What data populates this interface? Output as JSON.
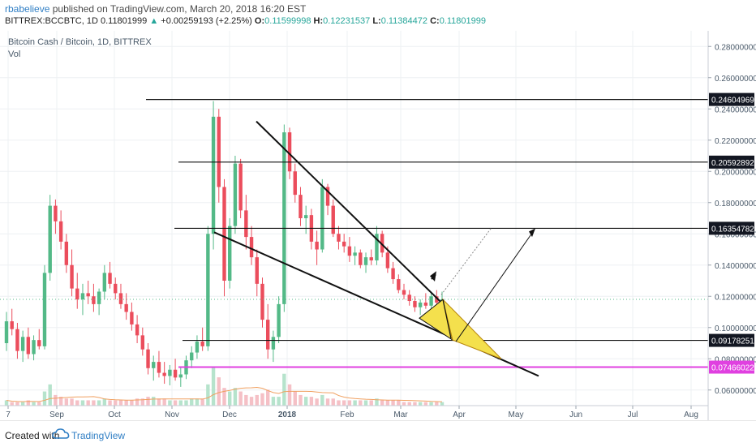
{
  "header": {
    "author": "rbabelieve",
    "published": "published on TradingView.com, March 20, 2018 16:20 EST",
    "symbol": "BITTREX:BCCBTC, 1D",
    "last": "0.11801999",
    "change_arrow": "▲",
    "change": "+0.00259193 (+2.25%)",
    "o_label": "O:",
    "o_val": "0.11599998",
    "h_label": "H:",
    "h_val": "0.12231537",
    "l_label": "L:",
    "l_val": "0.11384472",
    "c_label": "C:",
    "c_val": "0.11801999"
  },
  "legend": {
    "title": "Bitcoin Cash / Bitcoin, 1D, BITTREX",
    "vol": "Vol"
  },
  "footer": {
    "created": "Created with",
    "brand": "TradingView"
  },
  "colors": {
    "up": "#53b987",
    "down": "#eb4d5c",
    "magenta": "#e040e0",
    "yellow": "#f4e04d",
    "grid": "#eef0f3",
    "current_line": "#53b987",
    "volume_ma": "#f0a060"
  },
  "chart_data": {
    "type": "candlestick",
    "y_ticks": [
      "0.28000000",
      "0.26000000",
      "0.24000000",
      "0.22000000",
      "0.20000000",
      "0.18000000",
      "0.16000000",
      "0.14000000",
      "0.12000000",
      "0.10000000",
      "0.08000000",
      "0.06000000"
    ],
    "y_range": [
      0.05,
      0.29
    ],
    "x_ticks": [
      "7",
      "Sep",
      "Oct",
      "Nov",
      "Dec",
      "2018",
      "Feb",
      "Mar",
      "Apr",
      "May",
      "Jun",
      "Jul",
      "Aug"
    ],
    "price_labels": [
      {
        "text": "0.24604969",
        "value": 0.24604969,
        "style": "dark"
      },
      {
        "text": "0.20592892",
        "value": 0.20592892,
        "style": "dark"
      },
      {
        "text": "0.16354782",
        "value": 0.16354782,
        "style": "dark"
      },
      {
        "text": "0.09178251",
        "value": 0.09178251,
        "style": "dark"
      },
      {
        "text": "0.07466022",
        "value": 0.07466022,
        "style": "magenta"
      }
    ],
    "current_price": 0.11801999,
    "horizontal_levels": [
      0.24604969,
      0.20592892,
      0.16354782,
      0.09178251,
      0.07466022
    ],
    "candles": [
      [
        0.09,
        0.11,
        0.085,
        0.104
      ],
      [
        0.104,
        0.112,
        0.095,
        0.099
      ],
      [
        0.099,
        0.103,
        0.08,
        0.085
      ],
      [
        0.085,
        0.098,
        0.078,
        0.094
      ],
      [
        0.094,
        0.1,
        0.08,
        0.083
      ],
      [
        0.083,
        0.095,
        0.079,
        0.092
      ],
      [
        0.092,
        0.099,
        0.086,
        0.088
      ],
      [
        0.088,
        0.14,
        0.086,
        0.135
      ],
      [
        0.135,
        0.185,
        0.13,
        0.178
      ],
      [
        0.178,
        0.182,
        0.16,
        0.168
      ],
      [
        0.168,
        0.175,
        0.15,
        0.155
      ],
      [
        0.155,
        0.16,
        0.135,
        0.14
      ],
      [
        0.14,
        0.15,
        0.12,
        0.125
      ],
      [
        0.125,
        0.135,
        0.112,
        0.118
      ],
      [
        0.118,
        0.128,
        0.108,
        0.122
      ],
      [
        0.122,
        0.13,
        0.115,
        0.12
      ],
      [
        0.12,
        0.128,
        0.11,
        0.115
      ],
      [
        0.115,
        0.125,
        0.108,
        0.123
      ],
      [
        0.123,
        0.14,
        0.118,
        0.135
      ],
      [
        0.135,
        0.142,
        0.125,
        0.128
      ],
      [
        0.128,
        0.132,
        0.118,
        0.122
      ],
      [
        0.122,
        0.128,
        0.112,
        0.115
      ],
      [
        0.115,
        0.122,
        0.105,
        0.11
      ],
      [
        0.11,
        0.116,
        0.098,
        0.102
      ],
      [
        0.102,
        0.108,
        0.09,
        0.095
      ],
      [
        0.095,
        0.1,
        0.082,
        0.086
      ],
      [
        0.086,
        0.09,
        0.07,
        0.074
      ],
      [
        0.074,
        0.082,
        0.066,
        0.078
      ],
      [
        0.078,
        0.085,
        0.068,
        0.071
      ],
      [
        0.071,
        0.078,
        0.064,
        0.069
      ],
      [
        0.069,
        0.076,
        0.063,
        0.073
      ],
      [
        0.073,
        0.08,
        0.066,
        0.068
      ],
      [
        0.068,
        0.075,
        0.062,
        0.07
      ],
      [
        0.07,
        0.082,
        0.067,
        0.079
      ],
      [
        0.079,
        0.088,
        0.074,
        0.084
      ],
      [
        0.084,
        0.095,
        0.08,
        0.091
      ],
      [
        0.091,
        0.1,
        0.085,
        0.088
      ],
      [
        0.088,
        0.165,
        0.085,
        0.16
      ],
      [
        0.16,
        0.245,
        0.15,
        0.235
      ],
      [
        0.235,
        0.24,
        0.18,
        0.19
      ],
      [
        0.19,
        0.195,
        0.12,
        0.13
      ],
      [
        0.13,
        0.17,
        0.125,
        0.165
      ],
      [
        0.165,
        0.21,
        0.16,
        0.205
      ],
      [
        0.205,
        0.208,
        0.17,
        0.175
      ],
      [
        0.175,
        0.185,
        0.15,
        0.158
      ],
      [
        0.158,
        0.165,
        0.14,
        0.145
      ],
      [
        0.145,
        0.15,
        0.12,
        0.128
      ],
      [
        0.128,
        0.132,
        0.1,
        0.105
      ],
      [
        0.105,
        0.115,
        0.08,
        0.086
      ],
      [
        0.086,
        0.098,
        0.078,
        0.094
      ],
      [
        0.094,
        0.12,
        0.09,
        0.115
      ],
      [
        0.115,
        0.23,
        0.11,
        0.225
      ],
      [
        0.225,
        0.228,
        0.195,
        0.2
      ],
      [
        0.2,
        0.205,
        0.18,
        0.185
      ],
      [
        0.185,
        0.19,
        0.165,
        0.17
      ],
      [
        0.17,
        0.178,
        0.16,
        0.172
      ],
      [
        0.172,
        0.176,
        0.15,
        0.155
      ],
      [
        0.155,
        0.162,
        0.14,
        0.15
      ],
      [
        0.15,
        0.195,
        0.148,
        0.19
      ],
      [
        0.19,
        0.192,
        0.172,
        0.178
      ],
      [
        0.178,
        0.182,
        0.158,
        0.16
      ],
      [
        0.16,
        0.165,
        0.15,
        0.155
      ],
      [
        0.155,
        0.16,
        0.148,
        0.152
      ],
      [
        0.152,
        0.158,
        0.142,
        0.146
      ],
      [
        0.146,
        0.152,
        0.14,
        0.148
      ],
      [
        0.148,
        0.15,
        0.138,
        0.14
      ],
      [
        0.14,
        0.148,
        0.135,
        0.145
      ],
      [
        0.145,
        0.15,
        0.14,
        0.143
      ],
      [
        0.143,
        0.165,
        0.14,
        0.16
      ],
      [
        0.16,
        0.162,
        0.145,
        0.148
      ],
      [
        0.148,
        0.152,
        0.135,
        0.138
      ],
      [
        0.138,
        0.142,
        0.128,
        0.131
      ],
      [
        0.131,
        0.134,
        0.122,
        0.124
      ],
      [
        0.124,
        0.128,
        0.118,
        0.121
      ],
      [
        0.121,
        0.124,
        0.114,
        0.117
      ],
      [
        0.117,
        0.12,
        0.11,
        0.113
      ],
      [
        0.113,
        0.118,
        0.108,
        0.116
      ],
      [
        0.116,
        0.122,
        0.112,
        0.114
      ],
      [
        0.114,
        0.122,
        0.11,
        0.12
      ],
      [
        0.12,
        0.124,
        0.114,
        0.116
      ],
      [
        0.116,
        0.123,
        0.113,
        0.118
      ]
    ],
    "volumes": [
      3,
      2,
      2,
      2,
      3,
      2,
      2,
      8,
      12,
      6,
      5,
      4,
      4,
      3,
      3,
      3,
      3,
      3,
      4,
      3,
      3,
      3,
      3,
      3,
      4,
      4,
      5,
      5,
      4,
      4,
      3,
      3,
      3,
      3,
      4,
      4,
      4,
      12,
      22,
      16,
      10,
      8,
      10,
      8,
      6,
      5,
      6,
      7,
      9,
      5,
      5,
      18,
      12,
      8,
      6,
      5,
      5,
      4,
      6,
      4,
      4,
      3,
      3,
      3,
      3,
      3,
      3,
      3,
      4,
      3,
      3,
      3,
      3,
      2,
      2,
      2,
      2,
      2,
      2,
      2,
      2
    ],
    "drawings": {
      "descending_resistance": [
        [
          0.31,
          0.232
        ],
        [
          0.55,
          0.121
        ]
      ],
      "descending_support": [
        [
          0.265,
          0.161
        ],
        [
          0.665,
          0.069
        ]
      ],
      "dotted_projection": [
        [
          0.545,
          0.121
        ],
        [
          0.605,
          0.165
        ]
      ],
      "solid_projection": [
        [
          0.56,
          0.09
        ],
        [
          0.66,
          0.163
        ]
      ]
    }
  }
}
